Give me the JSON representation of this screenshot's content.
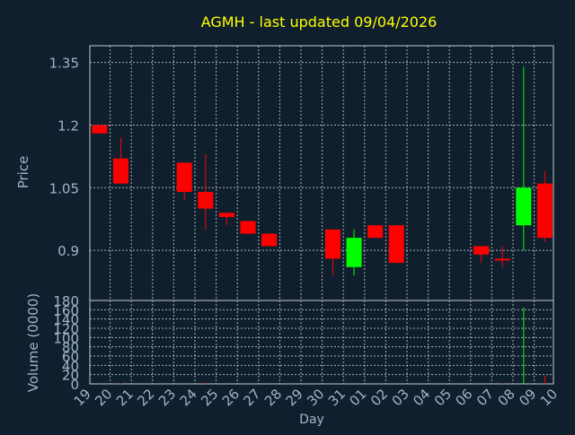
{
  "chart_data": {
    "type": "candlestick",
    "title": "AGMH - last updated 09/04/2026",
    "xlabel": "Day",
    "colors": {
      "background": "#0f1f2e",
      "text": "#a0b4c8",
      "title": "#ffff00",
      "grid": "#c8c8c8",
      "up": "#00ff00",
      "down": "#ff0000"
    },
    "price_panel": {
      "ylabel": "Price",
      "ylim": [
        0.78,
        1.39
      ],
      "ticks": [
        "0.9",
        "1.05",
        "1.2",
        "1.35"
      ],
      "tick_values": [
        0.9,
        1.05,
        1.2,
        1.35
      ]
    },
    "volume_panel": {
      "ylabel": "Volume (0000)",
      "ylim": [
        0,
        180
      ],
      "ticks": [
        "0",
        "20",
        "40",
        "60",
        "80",
        "100",
        "120",
        "140",
        "160",
        "180"
      ],
      "tick_values": [
        0,
        20,
        40,
        60,
        80,
        100,
        120,
        140,
        160,
        180
      ]
    },
    "x_labels": [
      "19",
      "20",
      "21",
      "22",
      "23",
      "24",
      "25",
      "26",
      "27",
      "28",
      "29",
      "30",
      "31",
      "01",
      "02",
      "03",
      "04",
      "05",
      "06",
      "07",
      "08",
      "09",
      "10"
    ],
    "candles": [
      {
        "day": "19",
        "open": 1.2,
        "close": 1.18,
        "high": 1.2,
        "low": 1.18,
        "volume": 0
      },
      {
        "day": "20",
        "open": 1.12,
        "close": 1.06,
        "high": 1.17,
        "low": 1.06,
        "volume": 1
      },
      {
        "day": "23",
        "open": 1.11,
        "close": 1.04,
        "high": 1.11,
        "low": 1.02,
        "volume": 0
      },
      {
        "day": "24",
        "open": 1.04,
        "close": 1.0,
        "high": 1.13,
        "low": 0.95,
        "volume": 3
      },
      {
        "day": "25",
        "open": 0.99,
        "close": 0.98,
        "high": 0.99,
        "low": 0.96,
        "volume": 0
      },
      {
        "day": "26",
        "open": 0.97,
        "close": 0.94,
        "high": 0.97,
        "low": 0.94,
        "volume": 0
      },
      {
        "day": "27",
        "open": 0.94,
        "close": 0.91,
        "high": 0.94,
        "low": 0.91,
        "volume": 0
      },
      {
        "day": "30",
        "open": 0.95,
        "close": 0.88,
        "high": 0.95,
        "low": 0.84,
        "volume": 0
      },
      {
        "day": "31",
        "open": 0.86,
        "close": 0.93,
        "high": 0.95,
        "low": 0.84,
        "volume": 0
      },
      {
        "day": "01",
        "open": 0.96,
        "close": 0.93,
        "high": 0.96,
        "low": 0.93,
        "volume": 0
      },
      {
        "day": "02",
        "open": 0.96,
        "close": 0.87,
        "high": 0.96,
        "low": 0.87,
        "volume": 0
      },
      {
        "day": "06",
        "open": 0.91,
        "close": 0.89,
        "high": 0.91,
        "low": 0.87,
        "volume": 0
      },
      {
        "day": "07",
        "open": 0.88,
        "close": 0.88,
        "high": 0.91,
        "low": 0.86,
        "volume": 1
      },
      {
        "day": "08",
        "open": 0.96,
        "close": 1.05,
        "high": 1.34,
        "low": 0.9,
        "volume": 165
      },
      {
        "day": "09",
        "open": 1.06,
        "close": 0.93,
        "high": 1.09,
        "low": 0.92,
        "volume": 18
      }
    ]
  }
}
